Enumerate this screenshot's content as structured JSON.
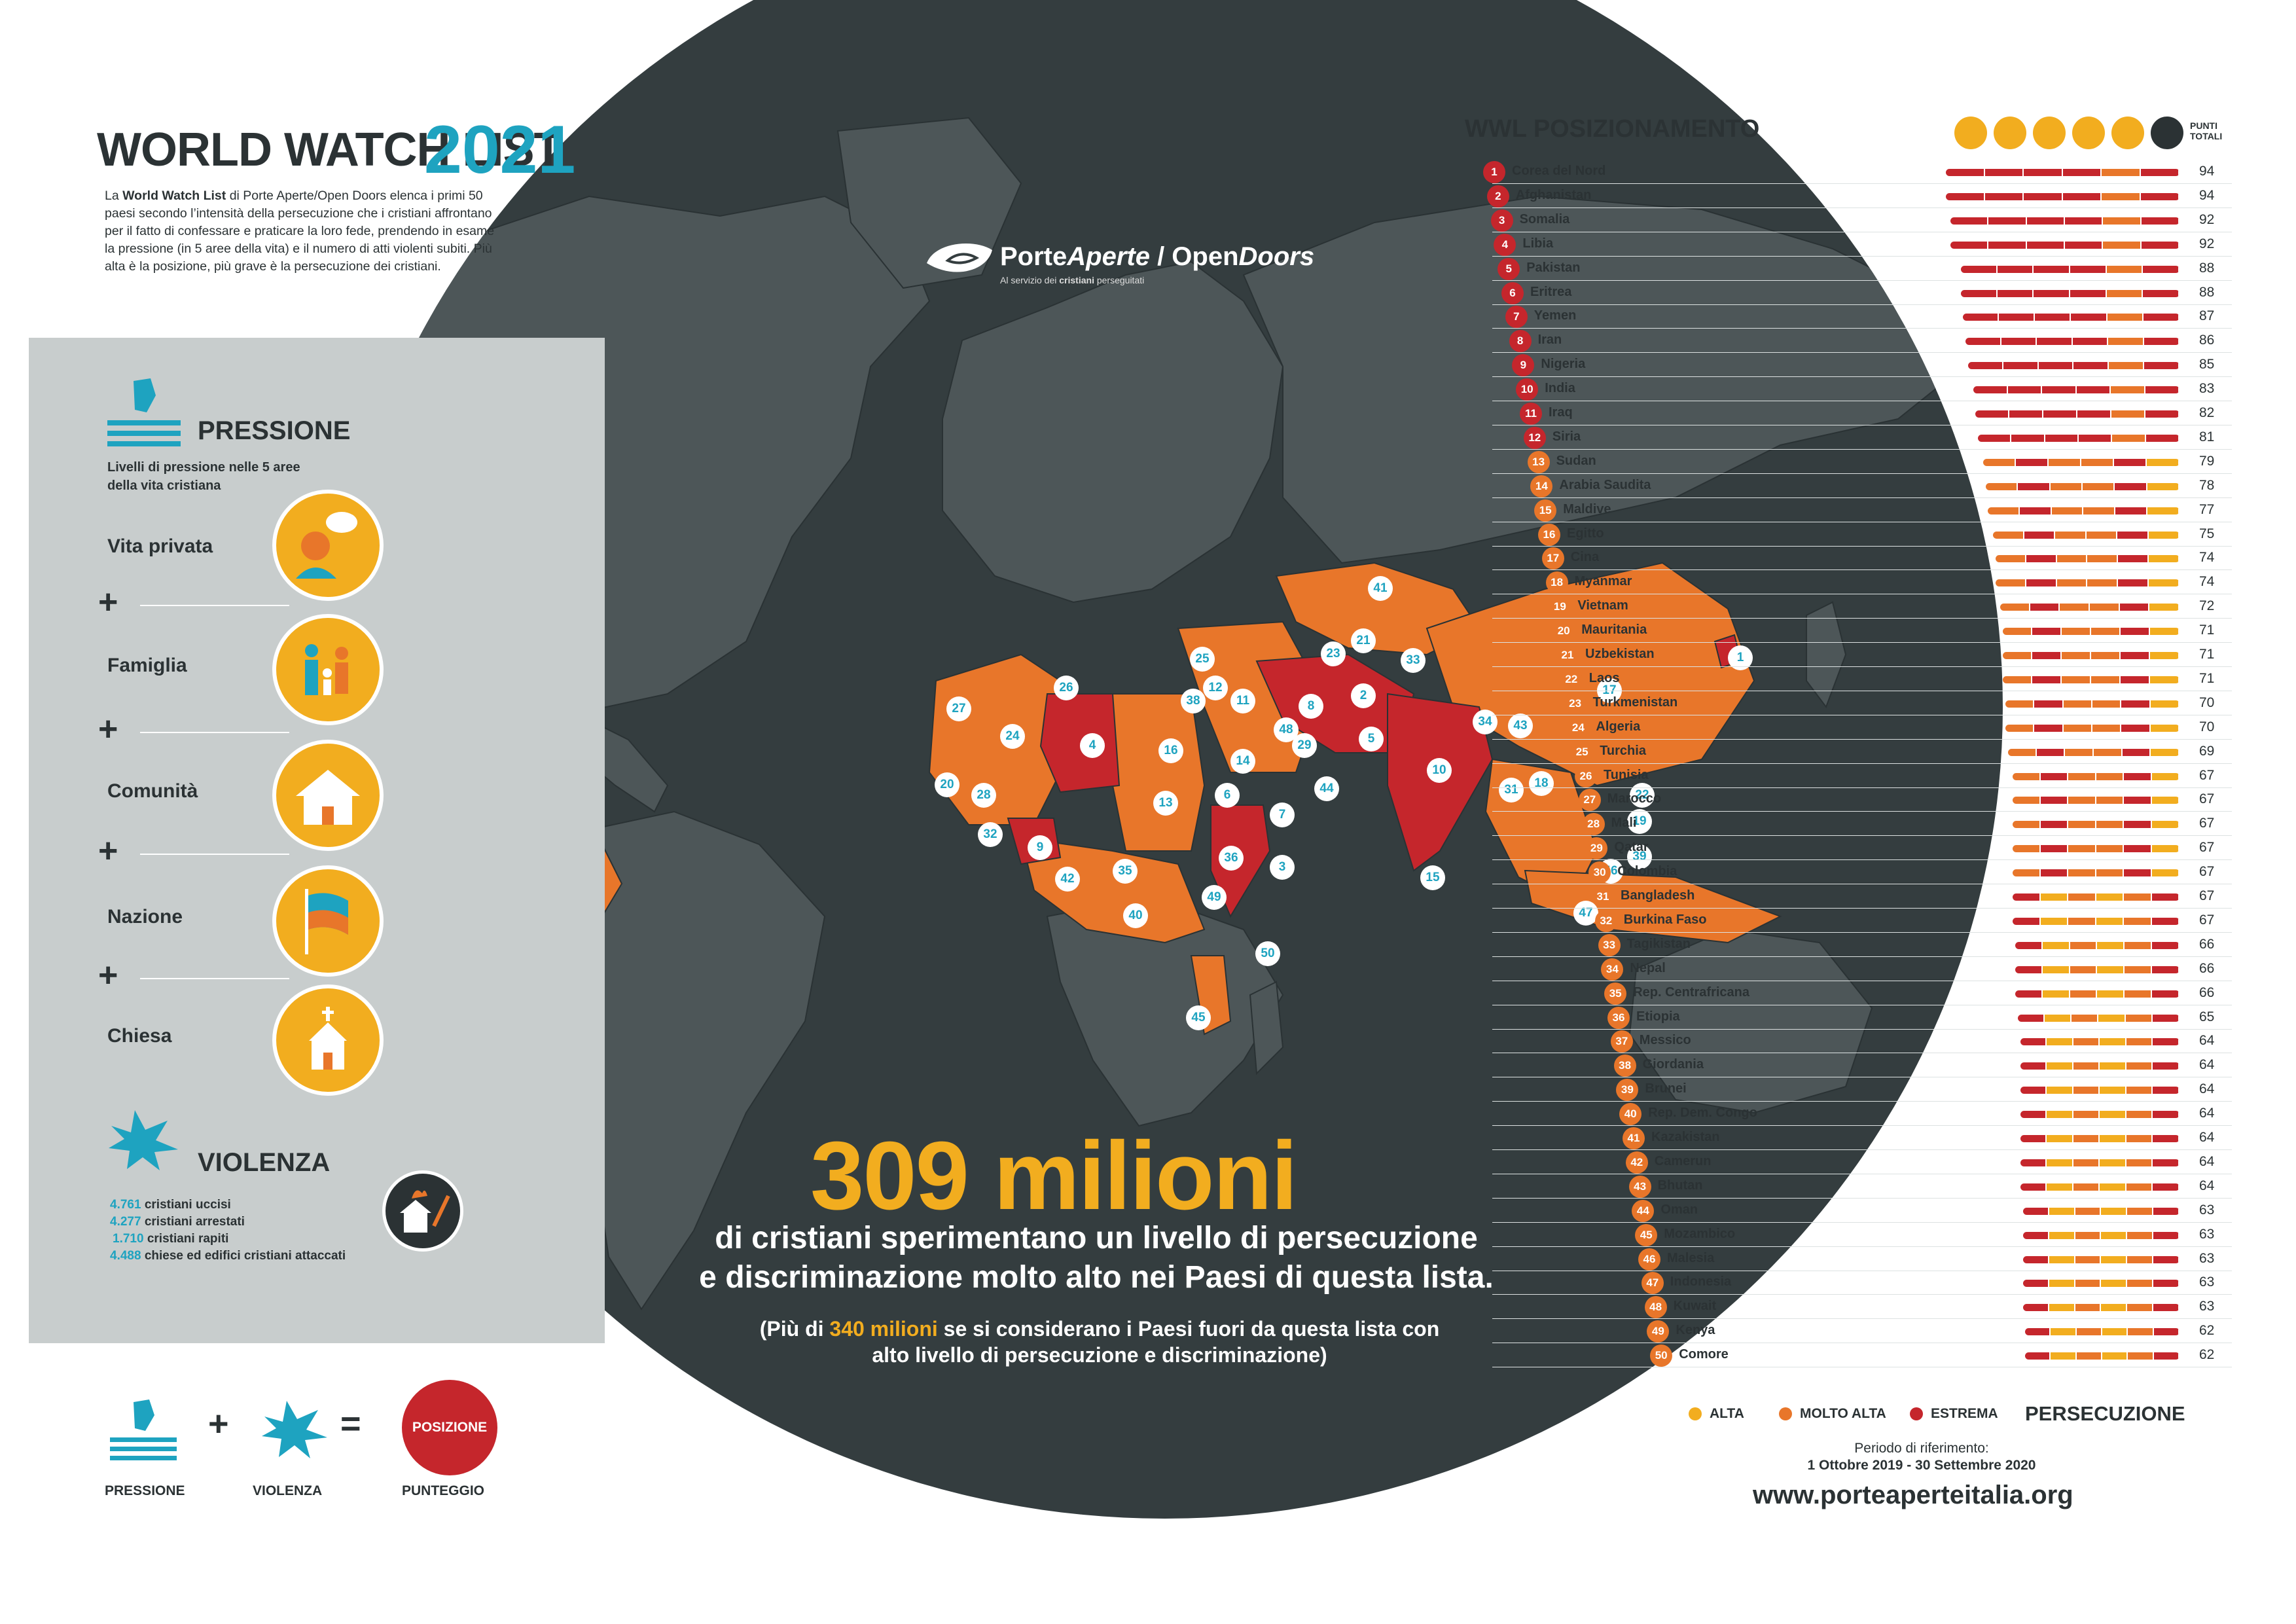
{
  "header": {
    "title": "WORLD WATCH LIST",
    "year": "2021",
    "intro_parts": [
      "La ",
      "World Watch List",
      " di Porte Aperte/Open Doors elenca i primi 50 paesi secondo l’intensità della persecuzione che i cristiani affrontano per il fatto di confessare e praticare la loro fede, prendendo in esame la pressione (in 5 aree della vita) e il numero di atti violenti subiti. Più alta è la posizione, più grave è la persecuzione dei cristiani."
    ]
  },
  "pressione": {
    "title": "PRESSIONE",
    "subtitle": "Livelli di pressione nelle 5 aree della vita cristiana",
    "areas": [
      "Vita privata",
      "Famiglia",
      "Comunità",
      "Nazione",
      "Chiesa"
    ],
    "plus": "+"
  },
  "violenza": {
    "title": "VIOLENZA",
    "stats": [
      {
        "n": "4.761",
        "label": "cristiani uccisi"
      },
      {
        "n": "4.277",
        "label": "cristiani arrestati"
      },
      {
        "n": "1.710",
        "label": "cristiani rapiti"
      },
      {
        "n": "4.488",
        "label": "chiese ed edifici cristiani attaccati"
      }
    ]
  },
  "formula": {
    "plus": "+",
    "equals": "=",
    "pressione_label": "PRESSIONE",
    "violenza_label": "VIOLENZA",
    "posizione": "POSIZIONE",
    "punteggio_label": "PUNTEGGIO"
  },
  "logo": {
    "name_a": "Porte",
    "name_b": "Aperte",
    "name_sep": " / ",
    "name_c": "Open",
    "name_d": "Doors",
    "tagline_a": "Al servizio dei ",
    "tagline_b": "cristiani",
    "tagline_c": " perseguitati"
  },
  "headline": {
    "number": "309 milioni",
    "line1": "di cristiani sperimentano un livello di persecuzione",
    "line2": "e discriminazione molto alto nei Paesi di questa lista.",
    "note_a": "(Più di ",
    "note_hl": "340 milioni",
    "note_b": " se si considerano i Paesi fuori da questa lista con alto livello di persecuzione e discriminazione)"
  },
  "ranking": {
    "title": "WWL POSIZIONAMENTO",
    "points_header": "PUNTI TOTALI",
    "rows": [
      {
        "rank": "1",
        "name": "Corea del Nord",
        "points": "94"
      },
      {
        "rank": "2",
        "name": "Afghanistan",
        "points": "94"
      },
      {
        "rank": "3",
        "name": "Somalia",
        "points": "92"
      },
      {
        "rank": "4",
        "name": "Libia",
        "points": "92"
      },
      {
        "rank": "5",
        "name": "Pakistan",
        "points": "88"
      },
      {
        "rank": "6",
        "name": "Eritrea",
        "points": "88"
      },
      {
        "rank": "7",
        "name": "Yemen",
        "points": "87"
      },
      {
        "rank": "8",
        "name": "Iran",
        "points": "86"
      },
      {
        "rank": "9",
        "name": "Nigeria",
        "points": "85"
      },
      {
        "rank": "10",
        "name": "India",
        "points": "83"
      },
      {
        "rank": "11",
        "name": "Iraq",
        "points": "82"
      },
      {
        "rank": "12",
        "name": "Siria",
        "points": "81"
      },
      {
        "rank": "13",
        "name": "Sudan",
        "points": "79"
      },
      {
        "rank": "14",
        "name": "Arabia Saudita",
        "points": "78"
      },
      {
        "rank": "15",
        "name": "Maldive",
        "points": "77"
      },
      {
        "rank": "16",
        "name": "Egitto",
        "points": "75"
      },
      {
        "rank": "17",
        "name": "Cina",
        "points": "74"
      },
      {
        "rank": "18",
        "name": "Myanmar",
        "points": "74"
      },
      {
        "rank": "19",
        "name": "Vietnam",
        "points": "72"
      },
      {
        "rank": "20",
        "name": "Mauritania",
        "points": "71"
      },
      {
        "rank": "21",
        "name": "Uzbekistan",
        "points": "71"
      },
      {
        "rank": "22",
        "name": "Laos",
        "points": "71"
      },
      {
        "rank": "23",
        "name": "Turkmenistan",
        "points": "70"
      },
      {
        "rank": "24",
        "name": "Algeria",
        "points": "70"
      },
      {
        "rank": "25",
        "name": "Turchia",
        "points": "69"
      },
      {
        "rank": "26",
        "name": "Tunisia",
        "points": "67"
      },
      {
        "rank": "27",
        "name": "Marocco",
        "points": "67"
      },
      {
        "rank": "28",
        "name": "Mali",
        "points": "67"
      },
      {
        "rank": "29",
        "name": "Qatar",
        "points": "67"
      },
      {
        "rank": "30",
        "name": "Colombia",
        "points": "67"
      },
      {
        "rank": "31",
        "name": "Bangladesh",
        "points": "67"
      },
      {
        "rank": "32",
        "name": "Burkina Faso",
        "points": "67"
      },
      {
        "rank": "33",
        "name": "Tagikistan",
        "points": "66"
      },
      {
        "rank": "34",
        "name": "Nepal",
        "points": "66"
      },
      {
        "rank": "35",
        "name": "Rep. Centrafricana",
        "points": "66"
      },
      {
        "rank": "36",
        "name": "Etiopia",
        "points": "65"
      },
      {
        "rank": "37",
        "name": "Messico",
        "points": "64"
      },
      {
        "rank": "38",
        "name": "Giordania",
        "points": "64"
      },
      {
        "rank": "39",
        "name": "Brunei",
        "points": "64"
      },
      {
        "rank": "40",
        "name": "Rep. Dem. Congo",
        "points": "64"
      },
      {
        "rank": "41",
        "name": "Kazakistan",
        "points": "64"
      },
      {
        "rank": "42",
        "name": "Camerun",
        "points": "64"
      },
      {
        "rank": "43",
        "name": "Bhutan",
        "points": "64"
      },
      {
        "rank": "44",
        "name": "Oman",
        "points": "63"
      },
      {
        "rank": "45",
        "name": "Mozambico",
        "points": "63"
      },
      {
        "rank": "46",
        "name": "Malesia",
        "points": "63"
      },
      {
        "rank": "47",
        "name": "Indonesia",
        "points": "63"
      },
      {
        "rank": "48",
        "name": "Kuwait",
        "points": "63"
      },
      {
        "rank": "49",
        "name": "Kenya",
        "points": "62"
      },
      {
        "rank": "50",
        "name": "Comore",
        "points": "62"
      }
    ]
  },
  "legend": {
    "alta": "ALTA",
    "molto_alta": "MOLTO ALTA",
    "estrema": "ESTREMA",
    "heading": "PERSECUZIONE",
    "colors": {
      "alta": "#f2ad1f",
      "molto_alta": "#e8762a",
      "estrema": "#c5262c"
    }
  },
  "period": {
    "label": "Periodo di riferimento:",
    "range": "1 Ottobre 2019 - 30 Settembre 2020"
  },
  "website": "www.porteaperteitalia.org",
  "icons": [
    "speech-bubble-icon",
    "family-icon",
    "house-icon",
    "flag-icon",
    "church-icon",
    "burning-church-icon",
    "hand-pressure-icon",
    "violence-burst-icon"
  ]
}
